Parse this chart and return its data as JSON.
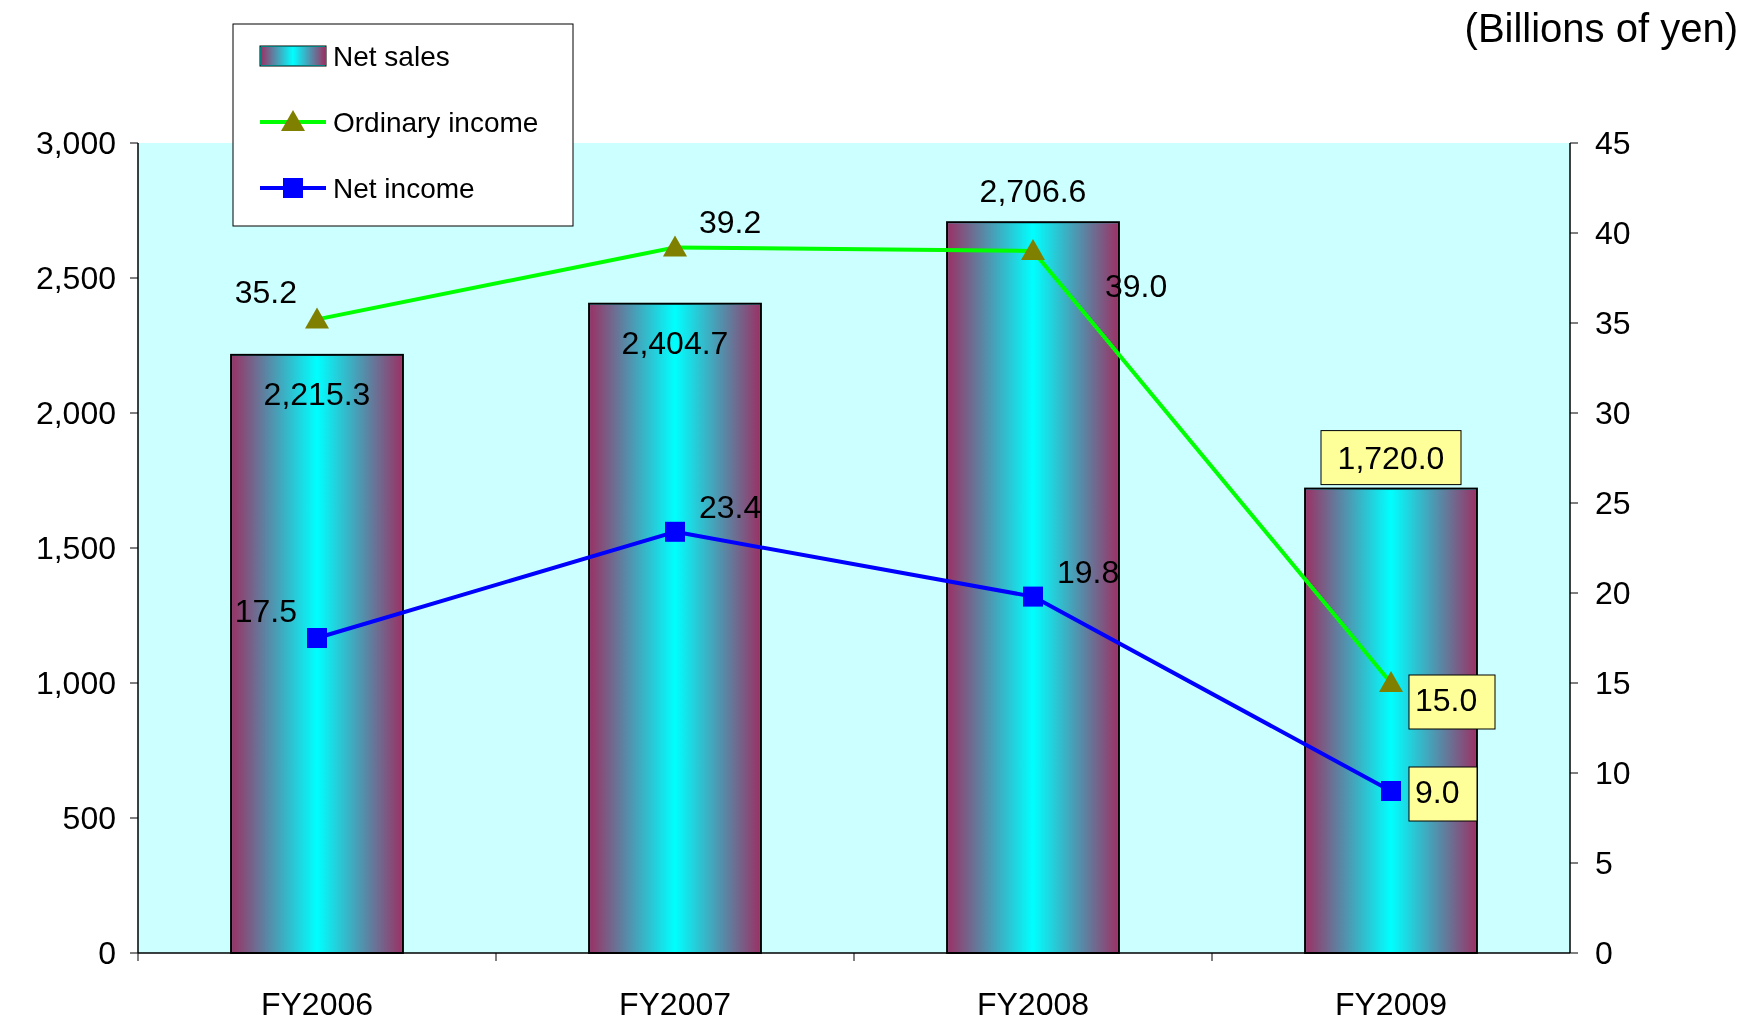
{
  "chart_data": {
    "type": "bar",
    "categories": [
      "FY2006",
      "FY2007",
      "FY2008",
      "FY2009"
    ],
    "series": [
      {
        "name": "Net sales",
        "color": "#00ffff",
        "values": [
          2215.3,
          2404.7,
          2706.6,
          1720.0
        ],
        "value_labels": [
          "2,215.3",
          "2,404.7",
          "2,706.6",
          "1,720.0"
        ]
      },
      {
        "name": "Ordinary income",
        "type": "line",
        "axis": "y2",
        "marker": "triangle",
        "color": "#00ff00",
        "values": [
          35.2,
          39.2,
          39.0,
          15.0
        ],
        "value_labels": [
          "35.2",
          "39.2",
          "39.0",
          "15.0"
        ]
      },
      {
        "name": "Net income",
        "type": "line",
        "axis": "y2",
        "marker": "square",
        "color": "#0000ff",
        "values": [
          17.5,
          23.4,
          19.8,
          9.0
        ],
        "value_labels": [
          "17.5",
          "23.4",
          "19.8",
          "9.0"
        ]
      }
    ],
    "ylim": [
      0,
      3000
    ],
    "yticks": [
      {
        "value": 0,
        "label": "0"
      },
      {
        "value": 500,
        "label": "500"
      },
      {
        "value": 1000,
        "label": "1,000"
      },
      {
        "value": 1500,
        "label": "1,500"
      },
      {
        "value": 2000,
        "label": "2,000"
      },
      {
        "value": 2500,
        "label": "2,500"
      },
      {
        "value": 3000,
        "label": "3,000"
      }
    ],
    "y2lim": [
      0,
      45
    ],
    "y2ticks": [
      0,
      5,
      10,
      15,
      20,
      25,
      30,
      35,
      40,
      45
    ],
    "annotations": [
      "(Billions of yen)"
    ],
    "legend": "top left",
    "grid": false
  }
}
